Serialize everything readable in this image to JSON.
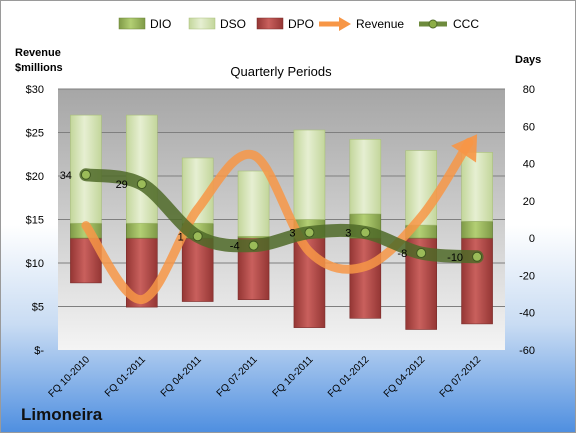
{
  "company": "Limoneira",
  "chart_data": {
    "type": "bar",
    "title": "Quarterly Periods",
    "categories": [
      "FQ 10-2010",
      "FQ 01-2011",
      "FQ 04-2011",
      "FQ 07-2011",
      "FQ 10-2011",
      "FQ 01-2012",
      "FQ 04-2012",
      "FQ 07-2012"
    ],
    "y_left": {
      "label_line1": "Revenue",
      "label_line2": "$millions",
      "range": [
        0,
        30
      ],
      "ticks": [
        0,
        5,
        10,
        15,
        20,
        25,
        30
      ],
      "tick_labels": [
        "$-",
        "$5",
        "$10",
        "$15",
        "$20",
        "$25",
        "$30"
      ]
    },
    "y_right": {
      "label": "Days",
      "range": [
        -60,
        80
      ],
      "ticks": [
        -60,
        -40,
        -20,
        0,
        20,
        40,
        60,
        80
      ],
      "tick_labels": [
        "-60",
        "-40",
        "-20",
        "0",
        "20",
        "40",
        "60",
        "80"
      ]
    },
    "series": [
      {
        "name": "DIO",
        "axis": "right",
        "kind": "stacked-bar",
        "color": "#9bbb59",
        "values": [
          8,
          8,
          8,
          1,
          10,
          13,
          7,
          9
        ]
      },
      {
        "name": "DSO",
        "axis": "right",
        "kind": "stacked-bar",
        "color": "#d7e4bd",
        "values": [
          58,
          58,
          35,
          35,
          48,
          40,
          40,
          37
        ]
      },
      {
        "name": "DPO",
        "axis": "right",
        "kind": "bar-negative",
        "color": "#c0504d",
        "values": [
          24,
          37,
          34,
          33,
          48,
          43,
          49,
          46
        ]
      },
      {
        "name": "Revenue",
        "axis": "left",
        "kind": "line-arrow",
        "color": "#f79646",
        "values": [
          14.3,
          5.8,
          16.2,
          22.4,
          11.3,
          9.6,
          15.3,
          24.8
        ]
      },
      {
        "name": "CCC",
        "axis": "right",
        "kind": "line-markers",
        "color": "#6e8b3d",
        "values": [
          34,
          29,
          1,
          -4,
          3,
          3,
          -8,
          -10
        ]
      }
    ],
    "data_labels": [
      "34",
      "29",
      "1",
      "-4",
      "3",
      "3",
      "-8",
      "-10"
    ],
    "legend": {
      "position": "top",
      "entries": [
        "DIO",
        "DSO",
        "DPO",
        "Revenue",
        "CCC"
      ]
    },
    "grid": true
  }
}
